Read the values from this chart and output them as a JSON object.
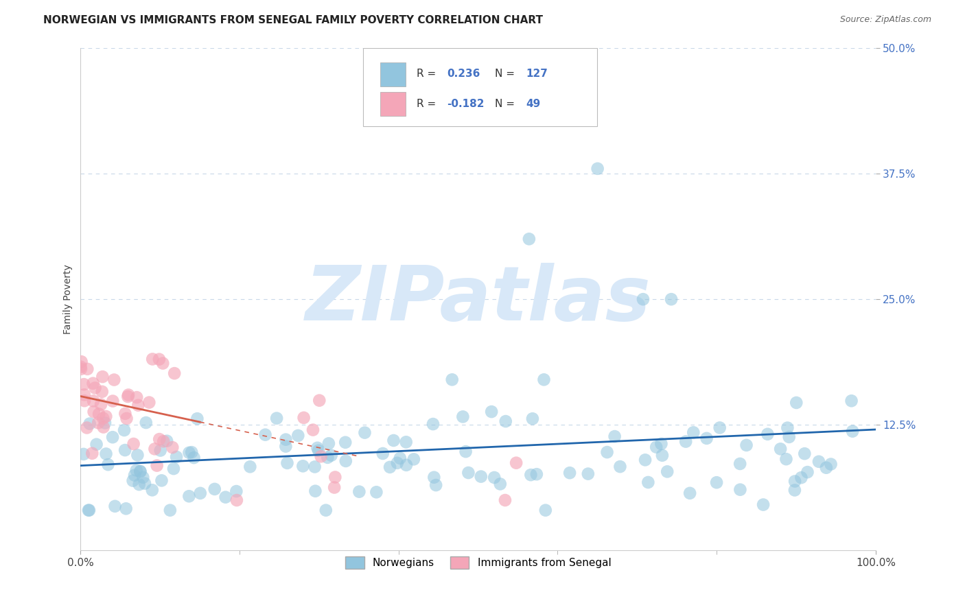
{
  "title": "NORWEGIAN VS IMMIGRANTS FROM SENEGAL FAMILY POVERTY CORRELATION CHART",
  "source": "Source: ZipAtlas.com",
  "ylabel": "Family Poverty",
  "xlim": [
    0,
    100
  ],
  "ylim": [
    0,
    50
  ],
  "ytick_values": [
    12.5,
    25.0,
    37.5,
    50.0
  ],
  "ytick_labels": [
    "12.5%",
    "25.0%",
    "37.5%",
    "50.0%"
  ],
  "xtick_values": [
    0,
    100
  ],
  "xtick_labels": [
    "0.0%",
    "100.0%"
  ],
  "blue_color": "#92c5de",
  "pink_color": "#f4a6b8",
  "blue_line_color": "#2166ac",
  "pink_line_color": "#d6604d",
  "grid_color": "#c8d8e8",
  "watermark": "ZIPatlas",
  "watermark_color": "#d8e8f8",
  "legend1_label": "Norwegians",
  "legend2_label": "Immigrants from Senegal",
  "title_fontsize": 11,
  "axis_label_fontsize": 10,
  "tick_fontsize": 11,
  "legend_fontsize": 11,
  "blue_R": 0.236,
  "blue_N": 127,
  "pink_R": -0.182,
  "pink_N": 49,
  "tick_color": "#4472c4"
}
